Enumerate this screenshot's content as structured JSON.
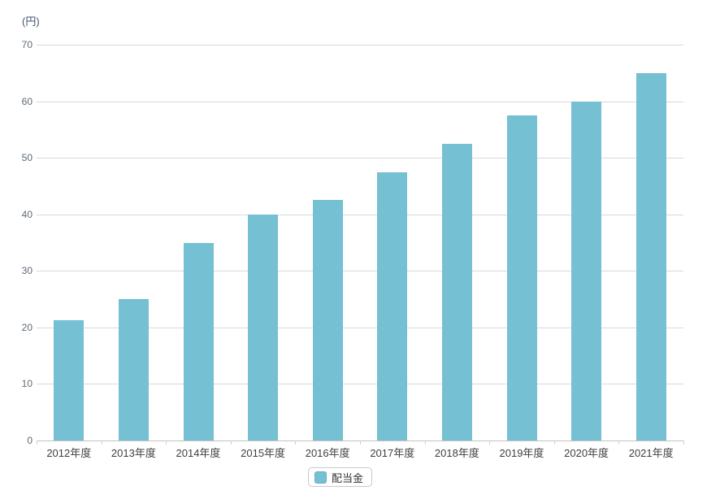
{
  "chart": {
    "unit_label": "(円)"
  },
  "chart_data": {
    "type": "bar",
    "title": "",
    "xlabel": "",
    "ylabel": "(円)",
    "categories": [
      "2012年度",
      "2013年度",
      "2014年度",
      "2015年度",
      "2016年度",
      "2017年度",
      "2018年度",
      "2019年度",
      "2020年度",
      "2021年度"
    ],
    "series": [
      {
        "name": "配当金",
        "values": [
          21.25,
          25,
          35,
          40,
          42.5,
          47.5,
          52.5,
          57.5,
          60,
          65
        ]
      }
    ],
    "ylim": [
      0,
      70
    ],
    "yticks": [
      0,
      10,
      20,
      30,
      40,
      50,
      60,
      70
    ],
    "grid": true,
    "legend_position": "bottom",
    "legend": "配当金",
    "bar_color": "#75c0d2",
    "gridline_color": "#d9d9d9"
  }
}
